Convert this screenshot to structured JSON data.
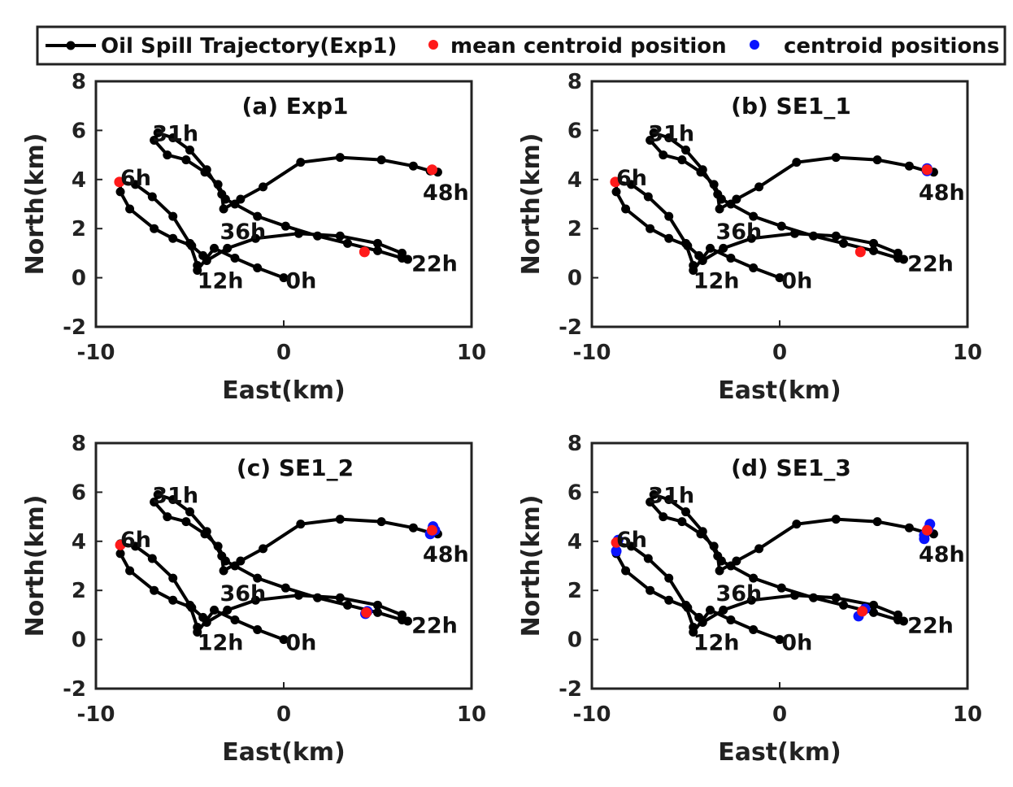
{
  "legend": {
    "trajectory_label": "Oil Spill Trajectory(Exp1)",
    "mean_label": "mean centroid position",
    "centroids_label": "centroid positions"
  },
  "colors": {
    "trajectory": "#000000",
    "mean": "#ff1a1a",
    "centroids": "#0a14ff"
  },
  "chart_data": {
    "type": "line",
    "xlabel": "East(km)",
    "ylabel": "North(km)",
    "xlim": [
      -10,
      10
    ],
    "ylim": [
      -2,
      8
    ],
    "xticks": [
      -10,
      0,
      10
    ],
    "yticks": [
      -2,
      0,
      2,
      4,
      6,
      8
    ],
    "trajectory": {
      "name": "Oil Spill Trajectory(Exp1)",
      "x": [
        0.0,
        -1.4,
        -2.6,
        -3.7,
        -4.6,
        -4.6,
        -5.0,
        -5.9,
        -7.0,
        -7.9,
        -8.7,
        -8.7,
        -8.2,
        -6.9,
        -5.9,
        -4.9,
        -4.3,
        -4.1,
        -3.0,
        -1.5,
        0.8,
        3.0,
        5.0,
        6.3,
        6.6,
        6.3,
        5.0,
        3.4,
        1.8,
        0.1,
        -1.4,
        -2.6,
        -3.1,
        -3.5,
        -4.2,
        -5.2,
        -6.2,
        -6.9,
        -6.7,
        -5.9,
        -5.0,
        -4.1,
        -3.3,
        -3.2,
        -2.3,
        -1.1,
        0.9,
        3.0,
        5.2,
        6.9,
        7.8,
        8.2
      ],
      "y": [
        0.0,
        0.4,
        0.8,
        1.2,
        0.3,
        0.5,
        1.4,
        2.5,
        3.3,
        3.8,
        3.9,
        3.5,
        2.8,
        2.0,
        1.6,
        1.3,
        0.9,
        0.7,
        1.2,
        1.6,
        1.8,
        1.7,
        1.4,
        1.0,
        0.75,
        0.8,
        1.1,
        1.4,
        1.7,
        2.1,
        2.5,
        3.0,
        3.2,
        3.8,
        4.3,
        4.8,
        5.0,
        5.6,
        5.9,
        5.7,
        5.2,
        4.4,
        3.4,
        2.8,
        3.2,
        3.7,
        4.7,
        4.9,
        4.8,
        4.55,
        4.35,
        4.3
      ]
    },
    "hour_labels": [
      {
        "text": "0h",
        "x": 0.1,
        "y": -0.1
      },
      {
        "text": "6h",
        "x": -8.7,
        "y": 4.1
      },
      {
        "text": "12h",
        "x": -4.6,
        "y": -0.1
      },
      {
        "text": "22h",
        "x": 6.8,
        "y": 0.6
      },
      {
        "text": "31h",
        "x": -7.0,
        "y": 5.9
      },
      {
        "text": "36h",
        "x": -3.4,
        "y": 1.9
      },
      {
        "text": "48h",
        "x": 7.4,
        "y": 3.5
      }
    ],
    "panels": [
      {
        "title": "(a) Exp1",
        "mean": [
          {
            "x": -8.75,
            "y": 3.9
          },
          {
            "x": 4.3,
            "y": 1.05
          },
          {
            "x": 7.9,
            "y": 4.4
          }
        ],
        "centroids": []
      },
      {
        "title": "(b) SE1_1",
        "mean": [
          {
            "x": -8.75,
            "y": 3.9
          },
          {
            "x": 4.3,
            "y": 1.05
          },
          {
            "x": 7.85,
            "y": 4.4
          }
        ],
        "centroids": [
          {
            "x": 7.85,
            "y": 4.35
          },
          {
            "x": 7.85,
            "y": 4.45
          }
        ]
      },
      {
        "title": "(c) SE1_2",
        "mean": [
          {
            "x": -8.7,
            "y": 3.85
          },
          {
            "x": 4.4,
            "y": 1.1
          },
          {
            "x": 7.9,
            "y": 4.45
          }
        ],
        "centroids": [
          {
            "x": 4.35,
            "y": 1.05
          },
          {
            "x": 4.45,
            "y": 1.15
          },
          {
            "x": 7.95,
            "y": 4.6
          },
          {
            "x": 7.8,
            "y": 4.3
          },
          {
            "x": 8.05,
            "y": 4.45
          }
        ]
      },
      {
        "title": "(d) SE1_3",
        "mean": [
          {
            "x": -8.7,
            "y": 3.95
          },
          {
            "x": 4.4,
            "y": 1.15
          },
          {
            "x": 7.85,
            "y": 4.45
          }
        ],
        "centroids": [
          {
            "x": -8.7,
            "y": 3.6
          },
          {
            "x": -8.6,
            "y": 4.05
          },
          {
            "x": 4.2,
            "y": 0.95
          },
          {
            "x": 4.55,
            "y": 1.25
          },
          {
            "x": 8.0,
            "y": 4.7
          },
          {
            "x": 7.7,
            "y": 4.1
          },
          {
            "x": 7.7,
            "y": 4.25
          },
          {
            "x": 7.9,
            "y": 4.5
          }
        ]
      }
    ]
  }
}
